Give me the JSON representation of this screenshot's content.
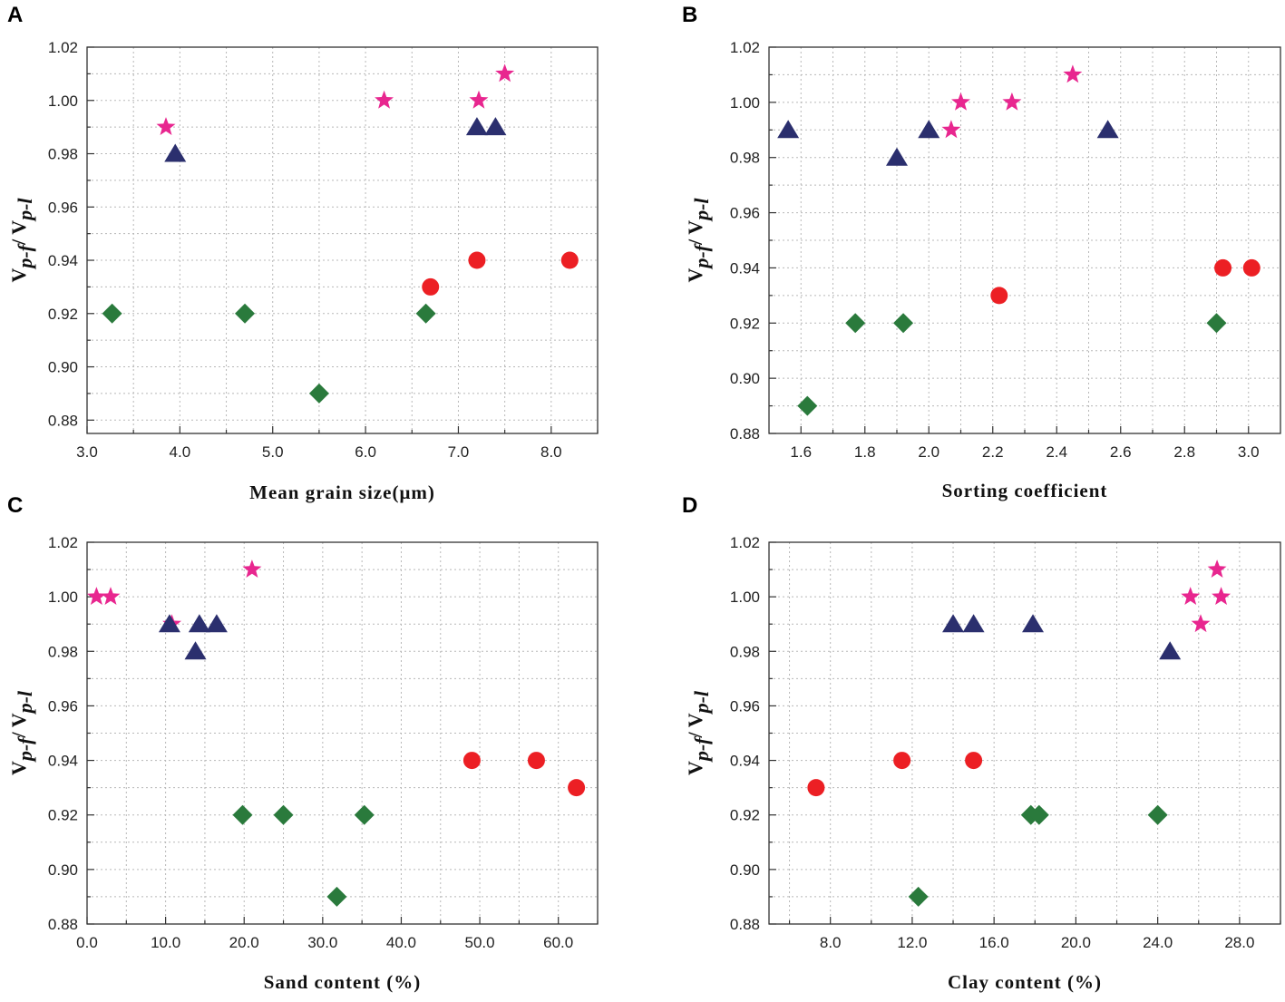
{
  "colors": {
    "triangle": "#2b2f6e",
    "star": "#e8268f",
    "circle": "#ec1f24",
    "diamond": "#2a7a3c"
  },
  "chart_data": [
    {
      "panel": "A",
      "type": "scatter",
      "xlabel": "Mean grain size(μm)",
      "ylabel": {
        "main": "V",
        "sub1": "p-f",
        "sep": "/ V",
        "sub2": "p-l"
      },
      "xlim": [
        3.0,
        8.5
      ],
      "ylim": [
        0.875,
        1.02
      ],
      "xticks": [
        3.0,
        4.0,
        5.0,
        6.0,
        7.0,
        8.0
      ],
      "xtick_labels": [
        "3.0",
        "4.0",
        "5.0",
        "6.0",
        "7.0",
        "8.0"
      ],
      "xminor": [
        3.5,
        4.5,
        5.5,
        6.5,
        7.5,
        8.5
      ],
      "yticks": [
        0.88,
        0.9,
        0.92,
        0.94,
        0.96,
        0.98,
        1.0,
        1.02
      ],
      "ytick_labels": [
        "0.88",
        "0.90",
        "0.92",
        "0.94",
        "0.96",
        "0.98",
        "1.00",
        "1.02"
      ],
      "yminor": [
        0.89,
        0.91,
        0.93,
        0.95,
        0.97,
        0.99,
        1.01
      ],
      "series": [
        {
          "name": "star",
          "marker": "star",
          "x": [
            3.85,
            6.2,
            7.22,
            7.5
          ],
          "y": [
            0.99,
            1.0,
            1.0,
            1.01
          ]
        },
        {
          "name": "triangle",
          "marker": "triangle",
          "x": [
            3.95,
            7.2,
            7.4
          ],
          "y": [
            0.98,
            0.99,
            0.99
          ]
        },
        {
          "name": "circle",
          "marker": "circle",
          "x": [
            6.7,
            7.2,
            8.2
          ],
          "y": [
            0.93,
            0.94,
            0.94
          ]
        },
        {
          "name": "diamond",
          "marker": "diamond",
          "x": [
            3.27,
            4.7,
            5.5,
            6.65
          ],
          "y": [
            0.92,
            0.92,
            0.89,
            0.92
          ]
        }
      ]
    },
    {
      "panel": "B",
      "type": "scatter",
      "xlabel": "Sorting coefficient",
      "ylabel": {
        "main": "V",
        "sub1": "p-f",
        "sep": "/ V",
        "sub2": "p-l"
      },
      "xlim": [
        1.5,
        3.1
      ],
      "ylim": [
        0.88,
        1.02
      ],
      "xticks": [
        1.6,
        1.8,
        2.0,
        2.2,
        2.4,
        2.6,
        2.8,
        3.0
      ],
      "xtick_labels": [
        "1.6",
        "1.8",
        "2.0",
        "2.2",
        "2.4",
        "2.6",
        "2.8",
        "3.0"
      ],
      "xminor": [
        1.7,
        1.9,
        2.1,
        2.3,
        2.5,
        2.7,
        2.9
      ],
      "yticks": [
        0.88,
        0.9,
        0.92,
        0.94,
        0.96,
        0.98,
        1.0,
        1.02
      ],
      "ytick_labels": [
        "0.88",
        "0.90",
        "0.92",
        "0.94",
        "0.96",
        "0.98",
        "1.00",
        "1.02"
      ],
      "yminor": [
        0.89,
        0.91,
        0.93,
        0.95,
        0.97,
        0.99,
        1.01
      ],
      "series": [
        {
          "name": "star",
          "marker": "star",
          "x": [
            2.07,
            2.1,
            2.26,
            2.45
          ],
          "y": [
            0.99,
            1.0,
            1.0,
            1.01
          ]
        },
        {
          "name": "triangle",
          "marker": "triangle",
          "x": [
            1.56,
            1.9,
            2.0,
            2.56
          ],
          "y": [
            0.99,
            0.98,
            0.99,
            0.99
          ]
        },
        {
          "name": "circle",
          "marker": "circle",
          "x": [
            2.22,
            2.92,
            3.01
          ],
          "y": [
            0.93,
            0.94,
            0.94
          ]
        },
        {
          "name": "diamond",
          "marker": "diamond",
          "x": [
            1.62,
            1.77,
            1.92,
            2.9
          ],
          "y": [
            0.89,
            0.92,
            0.92,
            0.92
          ]
        }
      ]
    },
    {
      "panel": "C",
      "type": "scatter",
      "xlabel": "Sand content (%)",
      "ylabel": {
        "main": "V",
        "sub1": "p-f",
        "sep": "/ V",
        "sub2": "p-l"
      },
      "xlim": [
        0.0,
        65.0
      ],
      "ylim": [
        0.88,
        1.02
      ],
      "xticks": [
        0,
        10,
        20,
        30,
        40,
        50,
        60
      ],
      "xtick_labels": [
        "0.0",
        "10.0",
        "20.0",
        "30.0",
        "40.0",
        "50.0",
        "60.0"
      ],
      "xminor": [
        5,
        15,
        25,
        35,
        45,
        55,
        65
      ],
      "yticks": [
        0.88,
        0.9,
        0.92,
        0.94,
        0.96,
        0.98,
        1.0,
        1.02
      ],
      "ytick_labels": [
        "0.88",
        "0.90",
        "0.92",
        "0.94",
        "0.96",
        "0.98",
        "1.00",
        "1.02"
      ],
      "yminor": [
        0.89,
        0.91,
        0.93,
        0.95,
        0.97,
        0.99,
        1.01
      ],
      "series": [
        {
          "name": "star",
          "marker": "star",
          "x": [
            1.2,
            3.0,
            10.8,
            21.0
          ],
          "y": [
            1.0,
            1.0,
            0.99,
            1.01
          ]
        },
        {
          "name": "triangle",
          "marker": "triangle",
          "x": [
            10.5,
            13.8,
            14.3,
            16.5
          ],
          "y": [
            0.99,
            0.98,
            0.99,
            0.99
          ]
        },
        {
          "name": "circle",
          "marker": "circle",
          "x": [
            49.0,
            57.2,
            62.3
          ],
          "y": [
            0.94,
            0.94,
            0.93
          ]
        },
        {
          "name": "diamond",
          "marker": "diamond",
          "x": [
            19.8,
            25.0,
            31.8,
            35.3
          ],
          "y": [
            0.92,
            0.92,
            0.89,
            0.92
          ]
        }
      ]
    },
    {
      "panel": "D",
      "type": "scatter",
      "xlabel": "Clay content (%)",
      "ylabel": {
        "main": "V",
        "sub1": "p-f",
        "sep": "/ V",
        "sub2": "p-l"
      },
      "xlim": [
        5.0,
        30.0
      ],
      "ylim": [
        0.88,
        1.02
      ],
      "xticks": [
        8,
        12,
        16,
        20,
        24,
        28
      ],
      "xtick_labels": [
        "8.0",
        "12.0",
        "16.0",
        "20.0",
        "24.0",
        "28.0"
      ],
      "xminor": [
        6,
        10,
        14,
        18,
        22,
        26,
        30
      ],
      "yticks": [
        0.88,
        0.9,
        0.92,
        0.94,
        0.96,
        0.98,
        1.0,
        1.02
      ],
      "ytick_labels": [
        "0.88",
        "0.90",
        "0.92",
        "0.94",
        "0.96",
        "0.98",
        "1.00",
        "1.02"
      ],
      "yminor": [
        0.89,
        0.91,
        0.93,
        0.95,
        0.97,
        0.99,
        1.01
      ],
      "series": [
        {
          "name": "star",
          "marker": "star",
          "x": [
            25.6,
            26.1,
            26.9,
            27.1
          ],
          "y": [
            1.0,
            0.99,
            1.01,
            1.0
          ]
        },
        {
          "name": "triangle",
          "marker": "triangle",
          "x": [
            14.0,
            15.0,
            17.9,
            24.6
          ],
          "y": [
            0.99,
            0.99,
            0.99,
            0.98
          ]
        },
        {
          "name": "circle",
          "marker": "circle",
          "x": [
            7.3,
            11.5,
            15.0
          ],
          "y": [
            0.93,
            0.94,
            0.94
          ]
        },
        {
          "name": "diamond",
          "marker": "diamond",
          "x": [
            12.3,
            17.8,
            18.2,
            24.0
          ],
          "y": [
            0.89,
            0.92,
            0.92,
            0.92
          ]
        }
      ]
    }
  ]
}
